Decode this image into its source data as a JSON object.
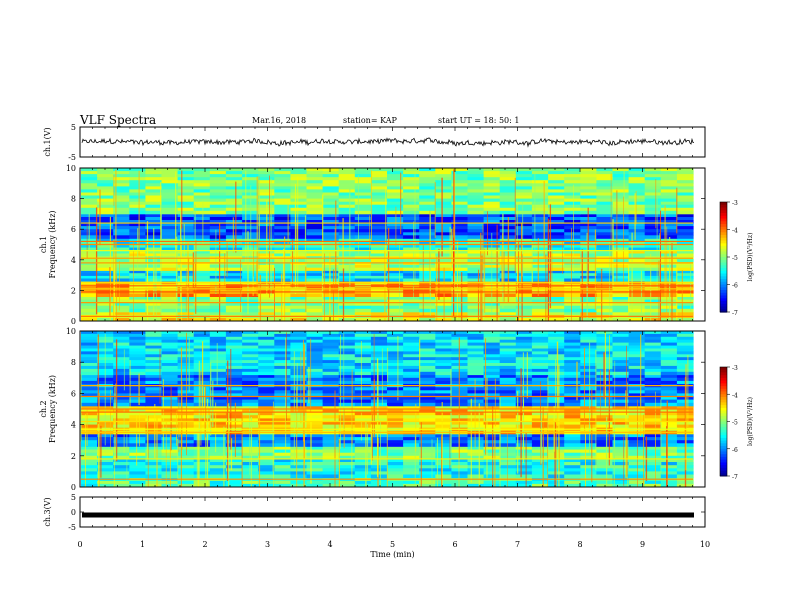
{
  "header": {
    "title": "VLF Spectra",
    "date": "Mar.16, 2018",
    "station": "station= KAP",
    "start": "start  UT =   18: 50: 1"
  },
  "chart_data": [
    {
      "type": "line",
      "panel": "ch1-waveform",
      "ylabel": "ch.1(V)",
      "ylim": [
        -5,
        5
      ],
      "yticks": [
        "5",
        "-5"
      ],
      "xlim": [
        0,
        10
      ],
      "description_values": {
        "approx_level": 0.0,
        "approx_amplitude": 1.5
      }
    },
    {
      "type": "heatmap",
      "panel": "ch1-spectrogram",
      "ylabel_line1": "ch.1",
      "ylabel_line2": "Frequency  (kHz)",
      "ylim": [
        0,
        10
      ],
      "yticks": [
        "0",
        "2",
        "4",
        "6",
        "8",
        "10"
      ],
      "xlim": [
        0,
        9.8
      ],
      "colorbar": {
        "label": "log(PSD)(V²/Hz)",
        "range": [
          -7,
          -3
        ],
        "ticks": [
          "-3",
          "-4",
          "-5",
          "-6",
          "-7"
        ]
      },
      "bands": [
        {
          "f": [
            0.0,
            0.6
          ],
          "level": -4.6
        },
        {
          "f": [
            0.6,
            1.6
          ],
          "level": -5.0
        },
        {
          "f": [
            1.6,
            2.6
          ],
          "level": -4.2
        },
        {
          "f": [
            2.6,
            3.3
          ],
          "level": -5.6
        },
        {
          "f": [
            3.3,
            4.6
          ],
          "level": -4.8
        },
        {
          "f": [
            4.6,
            5.4
          ],
          "level": -5.4
        },
        {
          "f": [
            5.4,
            7.0
          ],
          "level": -6.2
        },
        {
          "f": [
            7.0,
            10.0
          ],
          "level": -5.0
        }
      ],
      "lines_khz": [
        0.3,
        1.2,
        1.9,
        2.1,
        2.3,
        2.5,
        3.8,
        4.1,
        4.6,
        5.0,
        5.2,
        6.4
      ]
    },
    {
      "type": "heatmap",
      "panel": "ch2-spectrogram",
      "ylabel_line1": "ch.2",
      "ylabel_line2": "Frequency  (kHz)",
      "ylim": [
        0,
        10
      ],
      "yticks": [
        "0",
        "2",
        "4",
        "6",
        "8",
        "10"
      ],
      "xlim": [
        0,
        9.8
      ],
      "colorbar": {
        "label": "log(PSD)(V²/Hz)",
        "range": [
          -7,
          -3
        ],
        "ticks": [
          "-3",
          "-4",
          "-5",
          "-6",
          "-7"
        ]
      },
      "bands": [
        {
          "f": [
            0.0,
            0.6
          ],
          "level": -5.2
        },
        {
          "f": [
            0.6,
            1.8
          ],
          "level": -5.4
        },
        {
          "f": [
            1.8,
            2.6
          ],
          "level": -5.0
        },
        {
          "f": [
            2.6,
            3.4
          ],
          "level": -6.0
        },
        {
          "f": [
            3.4,
            5.2
          ],
          "level": -4.4
        },
        {
          "f": [
            5.2,
            7.2
          ],
          "level": -6.0
        },
        {
          "f": [
            7.2,
            10.0
          ],
          "level": -5.6
        }
      ],
      "lines_khz": [
        0.5,
        1.8,
        3.5,
        3.7,
        4.2,
        4.8,
        5.0,
        5.8,
        6.5
      ]
    },
    {
      "type": "line",
      "panel": "ch3-waveform",
      "ylabel": "ch.3(V)",
      "ylim": [
        -5,
        5
      ],
      "yticks": [
        "5",
        "0",
        "-5"
      ],
      "xlim": [
        0,
        10
      ],
      "values_constant": -1.0
    }
  ],
  "xaxis": {
    "label": "Time  (min)",
    "ticks": [
      "0",
      "1",
      "2",
      "3",
      "4",
      "5",
      "6",
      "7",
      "8",
      "9",
      "10"
    ],
    "range": [
      0,
      10
    ]
  },
  "colors": {
    "jet": [
      "#00007f",
      "#0000ff",
      "#007fff",
      "#00ffff",
      "#7fff7f",
      "#ffff00",
      "#ff7f00",
      "#ff0000",
      "#7f0000"
    ]
  }
}
